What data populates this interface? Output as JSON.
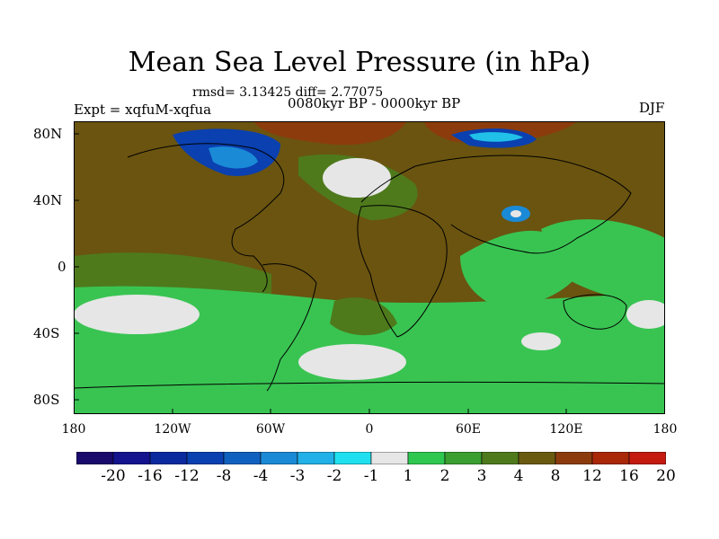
{
  "figure": {
    "title": "Mean Sea Level Pressure (in hPa)",
    "stats": "rmsd= 3.13425 diff= 2.77075",
    "period": "0080kyr BP - 0000kyr BP",
    "experiment": "Expt = xqfuM-xqfua",
    "season": "DJF"
  },
  "axes": {
    "lat_labels": [
      "80N",
      "40N",
      "0",
      "40S",
      "80S"
    ],
    "lon_labels": [
      "180",
      "120W",
      "60W",
      "0",
      "60E",
      "120E",
      "180"
    ]
  },
  "colorbar": {
    "labels": [
      "-20",
      "-16",
      "-12",
      "-8",
      "-4",
      "-3",
      "-2",
      "-1",
      "1",
      "2",
      "3",
      "4",
      "8",
      "12",
      "16",
      "20"
    ],
    "colors": [
      "#1a0a6b",
      "#14148f",
      "#0a2a9e",
      "#0a40b0",
      "#1060c0",
      "#1a8ad6",
      "#22b0e8",
      "#20e0f0",
      "#e6e6e6",
      "#2ec850",
      "#3a9e30",
      "#4e7a1c",
      "#6a5a10",
      "#8c3c0c",
      "#a82808",
      "#c41a10"
    ]
  },
  "map_colors": {
    "ocean_green": "#39c452",
    "land_brown": "#6a5410",
    "olive": "#4e7a1c",
    "brown_red": "#8c3c0c",
    "near_zero": "#e6e6e6",
    "blue_low": "#0a40b0",
    "cyan_low": "#20c0e8"
  }
}
